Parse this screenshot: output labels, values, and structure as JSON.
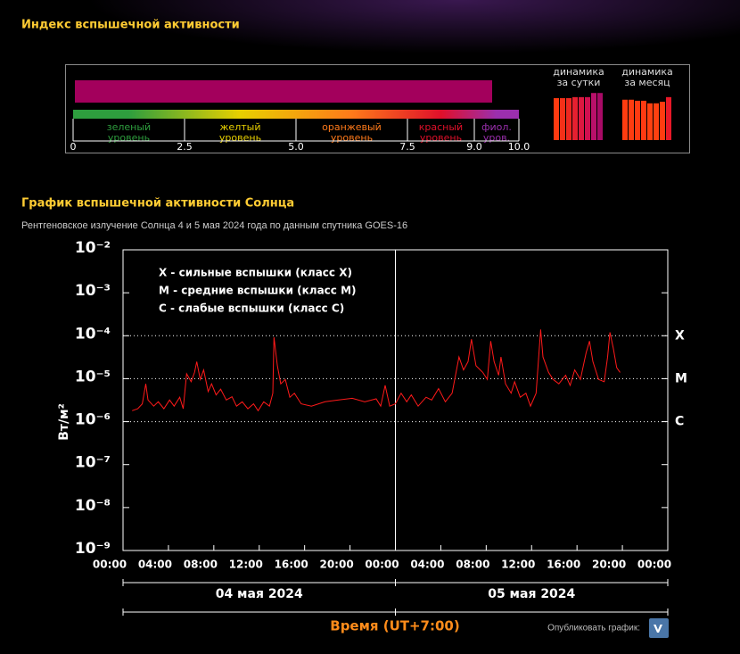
{
  "header": {
    "title": "Индекс вспышечной активности"
  },
  "section": {
    "title": "График вспышечной активности Солнца",
    "subtitle": "Рентгеновское излучение Солнца 4 и 5 мая 2024 года по данным спутника GOES-16"
  },
  "footer": {
    "share": "Опубликовать график:"
  },
  "chart_data": [
    {
      "type": "gauge",
      "values": [
        9.4
      ],
      "color": "#a3005c",
      "xlim": [
        0,
        10
      ],
      "xticks": [
        0,
        2.5,
        {
          "value": 5,
          "label": "5.0"
        },
        7.5,
        {
          "value": 9,
          "label": "9.0"
        },
        {
          "value": 10,
          "label": "10.0"
        }
      ],
      "levels": [
        {
          "lines": [
            "зеленый",
            "уровень"
          ],
          "color": "#2e9e3e"
        },
        {
          "lines": [
            "желтый",
            "уровень"
          ],
          "color": "#e8d000"
        },
        {
          "lines": [
            "оранжевый",
            "уровень"
          ],
          "color": "#ff7a1a"
        },
        {
          "lines": [
            "красный",
            "уровень"
          ],
          "color": "#e0102a"
        },
        {
          "lines": [
            "фиол.",
            "уров."
          ],
          "color": "#9b2fae"
        }
      ]
    },
    {
      "type": "mini-bar",
      "title": [
        "динамика",
        "за сутки"
      ],
      "ylim": [
        0,
        10
      ],
      "categories": [
        null,
        null,
        null,
        null,
        null,
        null,
        null,
        null
      ],
      "values": [
        8.1,
        8.1,
        8.1,
        8.3,
        8.3,
        8.3,
        9.1,
        9.1
      ],
      "colors": [
        "#ff3a10",
        "#f53018",
        "#ee2820",
        "#e62030",
        "#dc1840",
        "#d01050",
        "#b8106a",
        "#a80a66"
      ]
    },
    {
      "type": "mini-bar",
      "title": [
        "динамика",
        "за месяц"
      ],
      "ylim": [
        0,
        10
      ],
      "categories": [
        null,
        null,
        null,
        null,
        null,
        null,
        null,
        null
      ],
      "values": [
        7.8,
        7.8,
        7.6,
        7.6,
        7.1,
        7.1,
        7.4,
        8.3
      ],
      "colors": [
        "#ff3c10",
        "#ff3c10",
        "#ff3a12",
        "#ff3a12",
        "#ff4010",
        "#ff4010",
        "#ff3c10",
        "#e81828"
      ]
    },
    {
      "type": "line",
      "log_y": true,
      "ylabel": "Вт/м²",
      "xlabel": "Время (UT+7:00)",
      "ylim": [
        1e-09,
        0.01
      ],
      "yticks": [
        {
          "value": 1e-09,
          "label": "10⁻⁹"
        },
        {
          "value": 1e-08,
          "label": "10⁻⁸"
        },
        {
          "value": 1e-07,
          "label": "10⁻⁷"
        },
        {
          "value": 1e-06,
          "label": "10⁻⁶"
        },
        {
          "value": 1e-05,
          "label": "10⁻⁵"
        },
        {
          "value": 0.0001,
          "label": "10⁻⁴"
        },
        {
          "value": 0.001,
          "label": "10⁻³"
        },
        {
          "value": 0.01,
          "label": "10⁻²"
        }
      ],
      "xlim": [
        0,
        48
      ],
      "xticks": [
        {
          "value": 0,
          "label": "00:00"
        },
        {
          "value": 4,
          "label": "04:00"
        },
        {
          "value": 8,
          "label": "08:00"
        },
        {
          "value": 12,
          "label": "12:00"
        },
        {
          "value": 16,
          "label": "16:00"
        },
        {
          "value": 20,
          "label": "20:00"
        },
        {
          "value": 24,
          "label": "00:00"
        },
        {
          "value": 28,
          "label": "04:00"
        },
        {
          "value": 32,
          "label": "08:00"
        },
        {
          "value": 36,
          "label": "12:00"
        },
        {
          "value": 40,
          "label": "16:00"
        },
        {
          "value": 44,
          "label": "20:00"
        },
        {
          "value": 48,
          "label": "00:00"
        }
      ],
      "dates": [
        "04 мая 2024",
        "05 мая 2024"
      ],
      "levels": [
        {
          "value": 0.0001,
          "label": "X"
        },
        {
          "value": 1e-05,
          "label": "M"
        },
        {
          "value": 1e-06,
          "label": "C"
        }
      ],
      "annotations": [
        "X - сильные вспышки (класс X)",
        "M - средние вспышки (класс M)",
        "C - слабые вспышки (класс C)"
      ],
      "x": [
        0.8,
        1.3,
        1.7,
        2.0,
        2.2,
        2.7,
        3.1,
        3.6,
        4.1,
        4.5,
        5.0,
        5.3,
        5.6,
        6.0,
        6.3,
        6.5,
        6.8,
        7.1,
        7.5,
        7.8,
        8.2,
        8.6,
        9.1,
        9.6,
        10.0,
        10.5,
        11.0,
        11.5,
        11.9,
        12.4,
        12.9,
        13.2,
        13.3,
        13.6,
        13.9,
        14.3,
        14.7,
        15.1,
        15.7,
        16.6,
        17.8,
        19.0,
        20.2,
        21.3,
        22.3,
        22.7,
        23.1,
        23.5,
        24.0,
        24.5,
        25.0,
        25.4,
        26.0,
        26.7,
        27.2,
        27.8,
        28.4,
        29.0,
        29.6,
        30.0,
        30.4,
        30.7,
        31.1,
        31.7,
        32.1,
        32.4,
        32.7,
        33.1,
        33.3,
        33.7,
        34.2,
        34.5,
        35.0,
        35.5,
        35.9,
        36.4,
        36.8,
        37.0,
        37.5,
        37.9,
        38.4,
        39.0,
        39.4,
        39.8,
        40.3,
        40.8,
        41.1,
        41.4,
        41.9,
        42.4,
        42.7,
        42.9,
        43.2,
        43.5,
        43.8
      ],
      "series": [
        {
          "color": "#ff1a1a",
          "values": [
            1.8e-06,
            2e-06,
            2.6e-06,
            7.6e-06,
            3.2e-06,
            2.3e-06,
            2.9e-06,
            2e-06,
            3.2e-06,
            2.3e-06,
            3.7e-06,
            2e-06,
            1.3e-05,
            8.5e-06,
            1.4e-05,
            2.5e-05,
            9.6e-06,
            1.6e-05,
            5e-06,
            7.6e-06,
            4.2e-06,
            5.7e-06,
            3.2e-06,
            3.8e-06,
            2.3e-06,
            2.9e-06,
            2e-06,
            2.6e-06,
            1.8e-06,
            2.9e-06,
            2.3e-06,
            4.6e-06,
            9.2e-05,
            2e-05,
            7.6e-06,
            9.6e-06,
            3.7e-06,
            4.6e-06,
            2.6e-06,
            2.3e-06,
            2.9e-06,
            3.2e-06,
            3.5e-06,
            2.9e-06,
            3.4e-06,
            2.3e-06,
            7e-06,
            2.3e-06,
            2.6e-06,
            4.6e-06,
            2.9e-06,
            4.2e-06,
            2.3e-06,
            3.7e-06,
            3.2e-06,
            5.9e-06,
            2.9e-06,
            4.6e-06,
            3.2e-05,
            1.6e-05,
            2.5e-05,
            8.3e-05,
            2e-05,
            1.4e-05,
            9.6e-06,
            7.5e-05,
            2.5e-05,
            1.2e-05,
            3.2e-05,
            7.6e-06,
            4.6e-06,
            8.5e-06,
            3.7e-06,
            4.6e-06,
            2.3e-06,
            4.6e-06,
            0.00014,
            3.2e-05,
            1.4e-05,
            9.6e-06,
            7.6e-06,
            1.2e-05,
            7e-06,
            1.6e-05,
            9.6e-06,
            4e-05,
            7.5e-05,
            2.5e-05,
            9.6e-06,
            8.5e-06,
            3.2e-05,
            0.00012,
            5.1e-05,
            1.8e-05,
            1.4e-05
          ]
        }
      ]
    }
  ]
}
